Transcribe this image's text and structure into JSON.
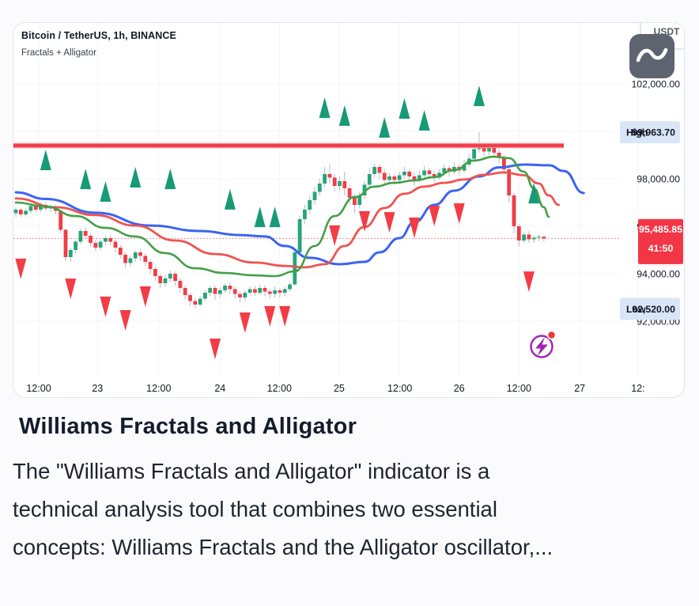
{
  "page_background": "#fbfbfd",
  "header": {
    "symbol_title": "Bitcoin / TetherUS, 1h, BINANCE",
    "indicator_title": "Fractals + Alligator",
    "clipped_ticker_label": "USDT"
  },
  "toolbar": {
    "chart_style_button_icon": "wave-line-icon"
  },
  "colors": {
    "up": "#26a578",
    "down": "#f23c46",
    "wick": "#b5bac6",
    "jaw": "#3b63f3",
    "teeth": "#ef5350",
    "lips": "#43a047",
    "fractal_up": "#179a76",
    "fractal_down": "#f23c46",
    "resistance": "#f23c48",
    "resistance_halo": "#f9868d",
    "last_price_line": "#f5898f",
    "last_price_badge": "#f23645",
    "axis_badge_bg": "#d9e6f8",
    "axis_text": "#131722",
    "grid": "#f2f4f8",
    "button_bg": "#5d6470",
    "lightning": "#a126b8",
    "lightning_dot": "#ee3b34"
  },
  "chart_data": {
    "type": "candlestick",
    "symbol": "Bitcoin / TetherUS",
    "interval": "1h",
    "exchange": "BINANCE",
    "indicator": "Fractals + Alligator",
    "y_axis": {
      "labels": [
        {
          "text": "102,000.00",
          "price": 102000
        },
        {
          "text": "98,000.00",
          "price": 98000
        },
        {
          "text": "96,000.00",
          "price": 96000
        },
        {
          "text": "94,000.00",
          "price": 94000
        },
        {
          "text": "92,000.00",
          "price": 92000
        }
      ],
      "grid_prices": [
        102000,
        100000,
        98000,
        96000,
        94000,
        92000
      ]
    },
    "x_axis": {
      "ticks": [
        {
          "label": "12:00",
          "bar": 4.6
        },
        {
          "label": "23",
          "bar": 16.4
        },
        {
          "label": "12:00",
          "bar": 28.7
        },
        {
          "label": "24",
          "bar": 41
        },
        {
          "label": "12:00",
          "bar": 52.9
        },
        {
          "label": "25",
          "bar": 64.9
        },
        {
          "label": "12:00",
          "bar": 77.1
        },
        {
          "label": "26",
          "bar": 89
        },
        {
          "label": "12:00",
          "bar": 101
        },
        {
          "label": "27",
          "bar": 113.2
        },
        {
          "label": "12:",
          "bar": 124.9
        }
      ]
    },
    "high_label": {
      "label": "High",
      "value": "99,963.70",
      "price": 99963.7
    },
    "low_label": {
      "label": "Low",
      "value": "92,520.00",
      "price": 92520
    },
    "last_price": {
      "display": "95,485.85",
      "value": 95485.85,
      "countdown": "41:50"
    },
    "resistance_line": {
      "price": 99400,
      "from_bar": 0,
      "to_bar": 110
    },
    "candles": [
      [
        96550,
        96800,
        96400,
        96700
      ],
      [
        96700,
        96780,
        96380,
        96500
      ],
      [
        96500,
        96750,
        96400,
        96650
      ],
      [
        96650,
        96950,
        96550,
        96850
      ],
      [
        96850,
        96980,
        96600,
        96700
      ],
      [
        96700,
        97000,
        96600,
        96900
      ],
      [
        96900,
        97050,
        96650,
        96750
      ],
      [
        96750,
        96900,
        96600,
        96800
      ],
      [
        96800,
        96900,
        96500,
        96650
      ],
      [
        96650,
        96700,
        95700,
        95850
      ],
      [
        95850,
        95900,
        94550,
        94700
      ],
      [
        94700,
        95100,
        94500,
        95000
      ],
      [
        95000,
        95450,
        94850,
        95350
      ],
      [
        95350,
        95900,
        95250,
        95800
      ],
      [
        95800,
        95950,
        95450,
        95600
      ],
      [
        95600,
        95700,
        95150,
        95300
      ],
      [
        95300,
        95400,
        94950,
        95100
      ],
      [
        95100,
        95450,
        95000,
        95350
      ],
      [
        95350,
        95600,
        95200,
        95500
      ],
      [
        95500,
        95650,
        95200,
        95350
      ],
      [
        95350,
        95450,
        94900,
        95100
      ],
      [
        95100,
        95200,
        94650,
        94800
      ],
      [
        94800,
        94900,
        94250,
        94450
      ],
      [
        94450,
        94750,
        94300,
        94650
      ],
      [
        94650,
        95000,
        94500,
        94900
      ],
      [
        94900,
        95050,
        94550,
        94750
      ],
      [
        94750,
        94850,
        94300,
        94500
      ],
      [
        94500,
        94600,
        94000,
        94200
      ],
      [
        94200,
        94300,
        93700,
        93900
      ],
      [
        93900,
        94000,
        93400,
        93600
      ],
      [
        93600,
        93950,
        93450,
        93800
      ],
      [
        93800,
        94150,
        93650,
        94000
      ],
      [
        94000,
        94100,
        93500,
        93700
      ],
      [
        93700,
        93800,
        93200,
        93400
      ],
      [
        93400,
        93500,
        92900,
        93100
      ],
      [
        93100,
        93200,
        92650,
        92850
      ],
      [
        92850,
        93000,
        92520,
        92700
      ],
      [
        92700,
        93050,
        92600,
        92950
      ],
      [
        92950,
        93300,
        92850,
        93200
      ],
      [
        93200,
        93500,
        93050,
        93400
      ],
      [
        93400,
        93500,
        92900,
        93150
      ],
      [
        93150,
        93400,
        93000,
        93300
      ],
      [
        93300,
        93600,
        93200,
        93500
      ],
      [
        93500,
        93650,
        93150,
        93350
      ],
      [
        93350,
        93450,
        92950,
        93150
      ],
      [
        93150,
        93250,
        92800,
        93000
      ],
      [
        93000,
        93300,
        92850,
        93200
      ],
      [
        93200,
        93450,
        93100,
        93350
      ],
      [
        93350,
        93500,
        93050,
        93200
      ],
      [
        93200,
        93550,
        93100,
        93400
      ],
      [
        93400,
        93500,
        93050,
        93250
      ],
      [
        93250,
        93350,
        92950,
        93150
      ],
      [
        93150,
        93450,
        93000,
        93300
      ],
      [
        93300,
        93400,
        93000,
        93200
      ],
      [
        93200,
        93450,
        93050,
        93350
      ],
      [
        93350,
        93650,
        93250,
        93550
      ],
      [
        93550,
        95050,
        93500,
        94900
      ],
      [
        94900,
        96450,
        94800,
        96300
      ],
      [
        96300,
        96900,
        96100,
        96700
      ],
      [
        96700,
        97300,
        96500,
        97100
      ],
      [
        97100,
        97650,
        96900,
        97450
      ],
      [
        97450,
        98000,
        97300,
        97800
      ],
      [
        97800,
        98500,
        97650,
        98200
      ],
      [
        98200,
        98600,
        97800,
        98050
      ],
      [
        98050,
        98200,
        97450,
        97700
      ],
      [
        97700,
        98100,
        97500,
        97900
      ],
      [
        97900,
        98300,
        97300,
        97600
      ],
      [
        97600,
        97750,
        96900,
        97200
      ],
      [
        97200,
        97350,
        96550,
        96900
      ],
      [
        96900,
        97450,
        96750,
        97300
      ],
      [
        97300,
        97900,
        97150,
        97750
      ],
      [
        97750,
        98450,
        97600,
        98200
      ],
      [
        98200,
        98650,
        98050,
        98500
      ],
      [
        98500,
        98600,
        98000,
        98250
      ],
      [
        98250,
        98400,
        97750,
        97950
      ],
      [
        97950,
        98250,
        97800,
        98100
      ],
      [
        98100,
        98200,
        97750,
        97950
      ],
      [
        97950,
        98300,
        97850,
        98150
      ],
      [
        98150,
        98500,
        98000,
        98300
      ],
      [
        98300,
        98400,
        97900,
        98100
      ],
      [
        98100,
        98250,
        97700,
        97950
      ],
      [
        97950,
        98350,
        97850,
        98150
      ],
      [
        98150,
        98550,
        98050,
        98350
      ],
      [
        98350,
        98450,
        98000,
        98200
      ],
      [
        98200,
        98300,
        97850,
        98050
      ],
      [
        98050,
        98400,
        97950,
        98250
      ],
      [
        98250,
        98600,
        98150,
        98450
      ],
      [
        98450,
        98550,
        98100,
        98300
      ],
      [
        98300,
        98700,
        98200,
        98500
      ],
      [
        98500,
        98600,
        98150,
        98350
      ],
      [
        98350,
        98800,
        98250,
        98600
      ],
      [
        98600,
        99050,
        98500,
        98850
      ],
      [
        98850,
        99500,
        98750,
        99250
      ],
      [
        99250,
        99963.7,
        99100,
        99350
      ],
      [
        99350,
        99500,
        98950,
        99150
      ],
      [
        99150,
        99450,
        99000,
        99300
      ],
      [
        99300,
        99400,
        98900,
        99100
      ],
      [
        99100,
        99250,
        98650,
        98900
      ],
      [
        98900,
        99000,
        98150,
        98400
      ],
      [
        98400,
        98500,
        97000,
        97300
      ],
      [
        97300,
        97400,
        95700,
        96000
      ],
      [
        96000,
        96100,
        95150,
        95400
      ],
      [
        95400,
        95750,
        95300,
        95650
      ],
      [
        95650,
        95800,
        95300,
        95450
      ],
      [
        95450,
        95600,
        95300,
        95520
      ],
      [
        95520,
        95650,
        95380,
        95560
      ],
      [
        95560,
        95600,
        95350,
        95485.85
      ]
    ],
    "alligator": {
      "jaw": [
        [
          0,
          97430
        ],
        [
          6,
          97150
        ],
        [
          16,
          96570
        ],
        [
          27,
          96030
        ],
        [
          37,
          95800
        ],
        [
          45,
          95630
        ],
        [
          50,
          95570
        ],
        [
          54,
          95170
        ],
        [
          59,
          94670
        ],
        [
          65,
          94400
        ],
        [
          70,
          94500
        ],
        [
          73,
          94900
        ],
        [
          77,
          95500
        ],
        [
          80,
          96170
        ],
        [
          84,
          96900
        ],
        [
          88,
          97500
        ],
        [
          93,
          98100
        ],
        [
          97,
          98480
        ],
        [
          102,
          98600
        ],
        [
          107,
          98570
        ],
        [
          110,
          98330
        ],
        [
          114,
          97400
        ]
      ],
      "teeth": [
        [
          0,
          97170
        ],
        [
          8,
          96800
        ],
        [
          16,
          96470
        ],
        [
          24,
          96030
        ],
        [
          32,
          95400
        ],
        [
          40,
          94830
        ],
        [
          48,
          94470
        ],
        [
          54,
          94330
        ],
        [
          58,
          94270
        ],
        [
          62,
          94400
        ],
        [
          66,
          95170
        ],
        [
          70,
          95970
        ],
        [
          74,
          96770
        ],
        [
          78,
          97370
        ],
        [
          82,
          97670
        ],
        [
          86,
          97830
        ],
        [
          90,
          97970
        ],
        [
          94,
          98170
        ],
        [
          98,
          98270
        ],
        [
          102,
          98150
        ],
        [
          105,
          97800
        ],
        [
          107,
          97300
        ],
        [
          109,
          96900
        ]
      ],
      "lips": [
        [
          0,
          97000
        ],
        [
          6,
          96830
        ],
        [
          12,
          96430
        ],
        [
          18,
          95930
        ],
        [
          24,
          95570
        ],
        [
          30,
          94870
        ],
        [
          36,
          94230
        ],
        [
          42,
          94030
        ],
        [
          48,
          93930
        ],
        [
          52,
          93900
        ],
        [
          56,
          94100
        ],
        [
          60,
          95170
        ],
        [
          64,
          96430
        ],
        [
          68,
          97230
        ],
        [
          72,
          97670
        ],
        [
          76,
          97830
        ],
        [
          80,
          97930
        ],
        [
          84,
          98070
        ],
        [
          88,
          98370
        ],
        [
          92,
          98770
        ],
        [
          96,
          98930
        ],
        [
          99,
          98870
        ],
        [
          102,
          98300
        ],
        [
          104,
          97600
        ],
        [
          106,
          96800
        ],
        [
          107,
          96400
        ]
      ]
    },
    "fractals": {
      "up": [
        [
          6,
          99230
        ],
        [
          14,
          98430
        ],
        [
          18,
          97900
        ],
        [
          24,
          98500
        ],
        [
          31,
          98430
        ],
        [
          43,
          97570
        ],
        [
          49,
          96830
        ],
        [
          52,
          96830
        ],
        [
          62,
          101430
        ],
        [
          66,
          101100
        ],
        [
          74,
          100600
        ],
        [
          78,
          101400
        ],
        [
          82,
          100900
        ],
        [
          93,
          101930
        ],
        [
          104,
          97830
        ]
      ],
      "down": [
        [
          1,
          93770
        ],
        [
          11,
          92930
        ],
        [
          18,
          92170
        ],
        [
          22,
          91600
        ],
        [
          26,
          92600
        ],
        [
          40,
          90400
        ],
        [
          46,
          91500
        ],
        [
          51,
          91770
        ],
        [
          54,
          91770
        ],
        [
          64,
          95170
        ],
        [
          70,
          95770
        ],
        [
          75,
          95730
        ],
        [
          80,
          95500
        ],
        [
          84,
          96000
        ],
        [
          89,
          96100
        ],
        [
          103,
          93230
        ]
      ]
    }
  },
  "article": {
    "title": "Williams Fractals and Alligator",
    "body_lines": [
      "The \"Williams Fractals and Alligator\" indicator is a",
      "technical analysis tool that combines two essential",
      "concepts: Williams Fractals and the Alligator oscillator,..."
    ]
  }
}
